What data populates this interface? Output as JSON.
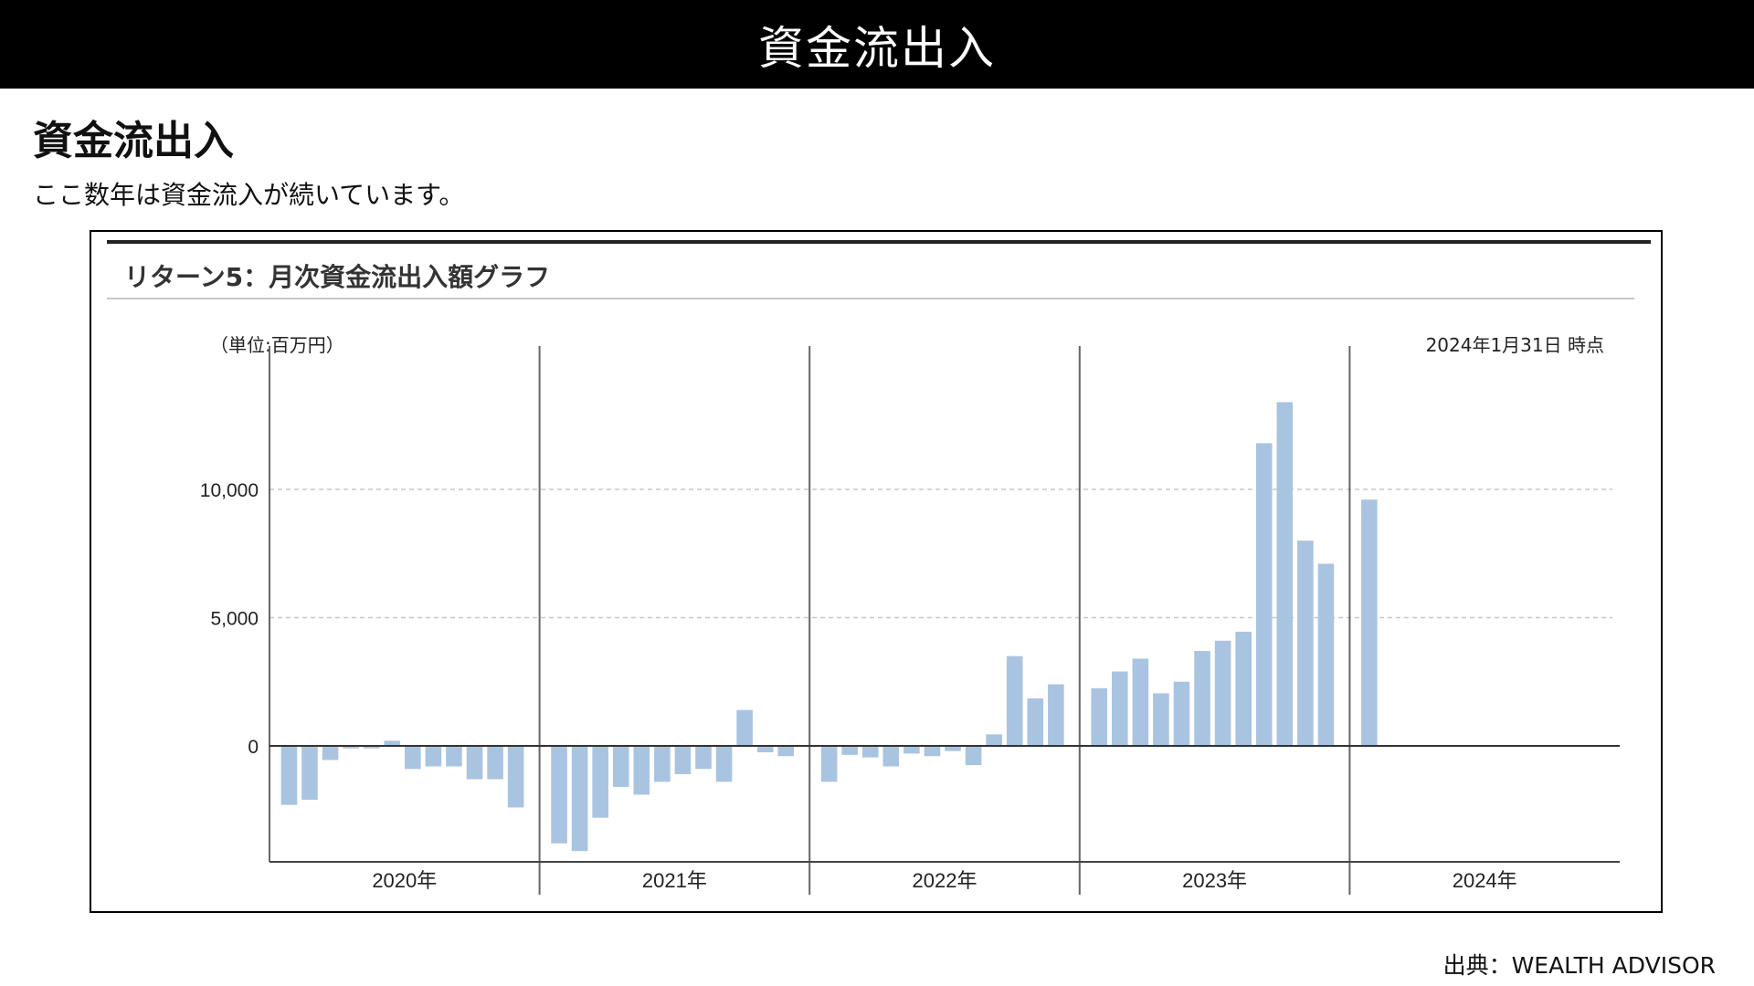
{
  "header": {
    "title": "資金流出入"
  },
  "page": {
    "heading": "資金流出入",
    "description": "ここ数年は資金流入が続いています。",
    "source": "出典：WEALTH ADVISOR"
  },
  "colors": {
    "bar": "#a9c4e1",
    "banner": "#000000",
    "grid": "#c8c8c8",
    "axis": "#555555"
  },
  "chart_data": {
    "type": "bar",
    "title": "リターン5：月次資金流出入額グラフ",
    "unit_label": "（単位:百万円）",
    "as_of": "2024年1月31日 時点",
    "ylim": [
      -4500,
      14000
    ],
    "yticks": [
      0,
      5000,
      10000
    ],
    "ytick_labels": [
      "0",
      "5,000",
      "10,000"
    ],
    "grid": true,
    "year_groups": [
      {
        "label": "2020年",
        "values": [
          -2300,
          -2100,
          -550,
          -100,
          -100,
          200,
          -900,
          -800,
          -800,
          -1300,
          -1300,
          -2400
        ]
      },
      {
        "label": "2021年",
        "values": [
          -3800,
          -4100,
          -2800,
          -1600,
          -1900,
          -1400,
          -1100,
          -900,
          -1400,
          1400,
          -250,
          -400
        ]
      },
      {
        "label": "2022年",
        "values": [
          -1400,
          -350,
          -450,
          -800,
          -300,
          -400,
          -200,
          -750,
          450,
          3500,
          1850,
          2400
        ]
      },
      {
        "label": "2023年",
        "values": [
          2250,
          2900,
          3400,
          2050,
          2500,
          3700,
          4100,
          4450,
          11800,
          13400,
          8000,
          7100
        ]
      },
      {
        "label": "2024年",
        "values": [
          9600
        ]
      }
    ]
  }
}
